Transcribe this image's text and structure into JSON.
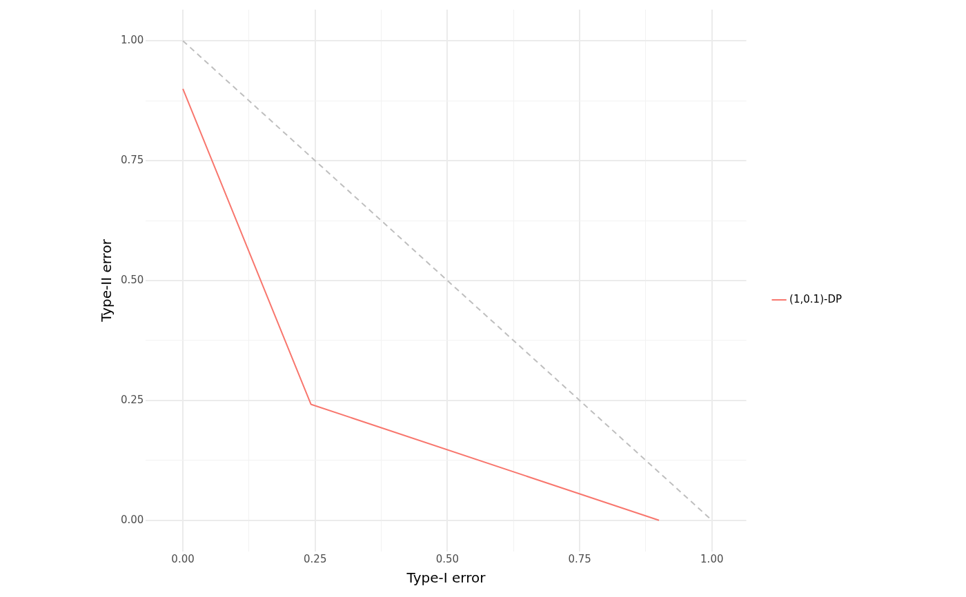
{
  "chart_data": {
    "type": "line",
    "xlabel": "Type-I error",
    "ylabel": "Type-II error",
    "xlim": [
      -0.07,
      1.065
    ],
    "ylim": [
      -0.065,
      1.065
    ],
    "xticks": [
      {
        "value": 0,
        "label": "0.00"
      },
      {
        "value": 0.125,
        "label": null
      },
      {
        "value": 0.25,
        "label": "0.25"
      },
      {
        "value": 0.375,
        "label": null
      },
      {
        "value": 0.5,
        "label": "0.50"
      },
      {
        "value": 0.625,
        "label": null
      },
      {
        "value": 0.75,
        "label": "0.75"
      },
      {
        "value": 0.875,
        "label": null
      },
      {
        "value": 1,
        "label": "1.00"
      }
    ],
    "yticks": [
      {
        "value": 0,
        "label": "0.00"
      },
      {
        "value": 0.125,
        "label": null
      },
      {
        "value": 0.25,
        "label": "0.25"
      },
      {
        "value": 0.375,
        "label": null
      },
      {
        "value": 0.5,
        "label": "0.50"
      },
      {
        "value": 0.625,
        "label": null
      },
      {
        "value": 0.75,
        "label": "0.75"
      },
      {
        "value": 0.875,
        "label": null
      },
      {
        "value": 1,
        "label": "1.00"
      }
    ],
    "grid": true,
    "legend": "right",
    "marker": "none",
    "series": [
      {
        "name": "(1,0.1)-DP",
        "color": "#f8766d",
        "x": [
          0,
          0.242,
          0.9
        ],
        "values": [
          0.9,
          0.242,
          0
        ],
        "line_style": "solid"
      },
      {
        "color": "#bebebe",
        "x": [
          0,
          1
        ],
        "values": [
          1,
          0
        ],
        "line_style": "dashed"
      }
    ]
  }
}
